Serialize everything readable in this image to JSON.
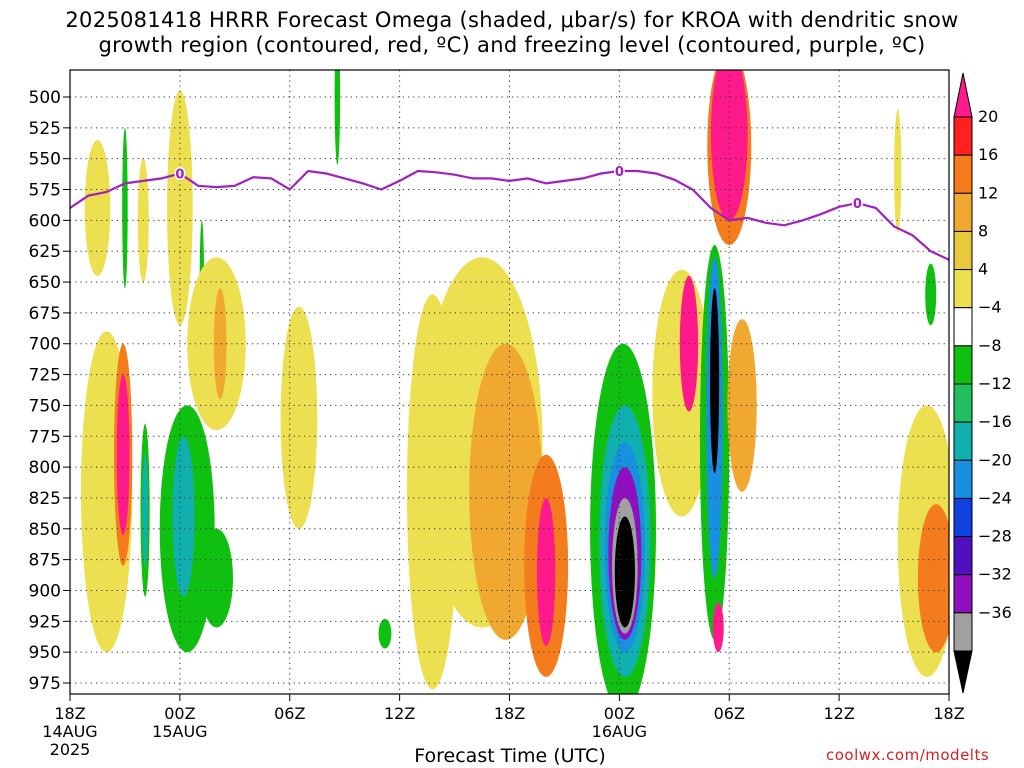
{
  "chart_data": {
    "type": "heatmap",
    "title": "2025081418 HRRR Forecast Omega (shaded, μbar/s) for KROA with dendritic snow\ngrowth region (contoured, red, ºC) and freezing level (contoured, purple, ºC)",
    "xlabel": "Forecast Time (UTC)",
    "ylabel": "",
    "credit": "coolwx.com/modelts",
    "x_range_hours": [
      0,
      48
    ],
    "y_range_mb": [
      1000,
      475
    ],
    "y_reversed": true,
    "grid": true,
    "x_ticks": [
      {
        "h": 0,
        "label": "18Z",
        "sub": "14AUG",
        "sub2": "2025"
      },
      {
        "h": 6,
        "label": "00Z",
        "sub": "15AUG",
        "sub2": ""
      },
      {
        "h": 12,
        "label": "06Z",
        "sub": "",
        "sub2": ""
      },
      {
        "h": 18,
        "label": "12Z",
        "sub": "",
        "sub2": ""
      },
      {
        "h": 24,
        "label": "18Z",
        "sub": "",
        "sub2": ""
      },
      {
        "h": 30,
        "label": "00Z",
        "sub": "16AUG",
        "sub2": ""
      },
      {
        "h": 36,
        "label": "06Z",
        "sub": "",
        "sub2": ""
      },
      {
        "h": 42,
        "label": "12Z",
        "sub": "",
        "sub2": ""
      },
      {
        "h": 48,
        "label": "18Z",
        "sub": "",
        "sub2": ""
      }
    ],
    "y_ticks": [
      500,
      525,
      550,
      575,
      600,
      625,
      650,
      675,
      700,
      725,
      750,
      775,
      800,
      825,
      850,
      875,
      900,
      925,
      950,
      975
    ],
    "colorbar": {
      "labels": [
        "20",
        "16",
        "12",
        "8",
        "4",
        "−4",
        "−8",
        "−12",
        "−16",
        "−20",
        "−24",
        "−28",
        "−32",
        "−36"
      ],
      "colors": [
        "#ff1a8c",
        "#ff2020",
        "#f47c1c",
        "#f0a830",
        "#e8c83c",
        "#ece050",
        "#ffffff",
        "#10c010",
        "#20c060",
        "#10b0b0",
        "#1890e0",
        "#1040e0",
        "#5010c0",
        "#9010c0",
        "#a0a0a0",
        "#000000"
      ]
    },
    "freezing_level": {
      "name": "0",
      "color": "#a020c0",
      "points": [
        [
          0,
          590
        ],
        [
          1,
          580
        ],
        [
          2,
          577
        ],
        [
          3,
          570
        ],
        [
          4,
          568
        ],
        [
          5,
          566
        ],
        [
          6,
          562
        ],
        [
          7,
          572
        ],
        [
          8,
          573
        ],
        [
          9,
          572
        ],
        [
          10,
          565
        ],
        [
          11,
          566
        ],
        [
          12,
          575
        ],
        [
          13,
          560
        ],
        [
          14,
          562
        ],
        [
          15,
          566
        ],
        [
          16,
          570
        ],
        [
          17,
          575
        ],
        [
          18,
          568
        ],
        [
          19,
          560
        ],
        [
          20,
          561
        ],
        [
          21,
          563
        ],
        [
          22,
          566
        ],
        [
          23,
          566
        ],
        [
          24,
          568
        ],
        [
          25,
          566
        ],
        [
          26,
          570
        ],
        [
          27,
          568
        ],
        [
          28,
          566
        ],
        [
          29,
          562
        ],
        [
          30,
          560
        ],
        [
          31,
          560
        ],
        [
          32,
          562
        ],
        [
          33,
          567
        ],
        [
          34,
          575
        ],
        [
          35,
          590
        ],
        [
          36,
          600
        ],
        [
          37,
          598
        ],
        [
          38,
          602
        ],
        [
          39,
          604
        ],
        [
          40,
          600
        ],
        [
          41,
          595
        ],
        [
          42,
          589
        ],
        [
          43,
          586
        ],
        [
          44,
          590
        ],
        [
          45,
          605
        ],
        [
          46,
          612
        ],
        [
          47,
          625
        ],
        [
          48,
          632
        ]
      ]
    },
    "ground": {
      "color": "#a0522d",
      "top_mb": 985
    },
    "cells": [
      {
        "h": 1.5,
        "p": 590,
        "rh": 0.7,
        "rp": 55,
        "v": 6
      },
      {
        "h": 3.0,
        "p": 590,
        "rh": 0.15,
        "rp": 65,
        "v": -6
      },
      {
        "h": 4.0,
        "p": 600,
        "rh": 0.3,
        "rp": 50,
        "v": 6
      },
      {
        "h": 6.0,
        "p": 590,
        "rh": 0.7,
        "rp": 95,
        "v": 6
      },
      {
        "h": 7.2,
        "p": 650,
        "rh": 0.12,
        "rp": 50,
        "v": -6
      },
      {
        "h": 8.0,
        "p": 700,
        "rh": 1.6,
        "rp": 70,
        "v": 6
      },
      {
        "h": 8.2,
        "p": 700,
        "rh": 0.35,
        "rp": 45,
        "v": 10
      },
      {
        "h": 2.0,
        "p": 820,
        "rh": 1.4,
        "rp": 130,
        "v": 6
      },
      {
        "h": 2.9,
        "p": 790,
        "rh": 0.5,
        "rp": 90,
        "v": 12
      },
      {
        "h": 2.9,
        "p": 790,
        "rh": 0.35,
        "rp": 65,
        "v": 20
      },
      {
        "h": 4.1,
        "p": 835,
        "rh": 0.25,
        "rp": 70,
        "v": -7
      },
      {
        "h": 4.1,
        "p": 835,
        "rh": 0.15,
        "rp": 45,
        "v": -12
      },
      {
        "h": 6.4,
        "p": 850,
        "rh": 1.5,
        "rp": 100,
        "v": -6
      },
      {
        "h": 6.2,
        "p": 840,
        "rh": 0.6,
        "rp": 65,
        "v": -12
      },
      {
        "h": 8.0,
        "p": 890,
        "rh": 0.9,
        "rp": 40,
        "v": -7
      },
      {
        "h": 14.6,
        "p": 500,
        "rh": 0.15,
        "rp": 55,
        "v": -6
      },
      {
        "h": 12.5,
        "p": 760,
        "rh": 1.0,
        "rp": 90,
        "v": 6
      },
      {
        "h": 17.2,
        "p": 935,
        "rh": 0.35,
        "rp": 12,
        "v": -6
      },
      {
        "h": 19.8,
        "p": 820,
        "rh": 1.4,
        "rp": 160,
        "v": 6
      },
      {
        "h": 22.5,
        "p": 780,
        "rh": 3.3,
        "rp": 150,
        "v": 6
      },
      {
        "h": 23.8,
        "p": 820,
        "rh": 2.0,
        "rp": 120,
        "v": 10
      },
      {
        "h": 26.0,
        "p": 880,
        "rh": 1.2,
        "rp": 90,
        "v": 12
      },
      {
        "h": 26.0,
        "p": 885,
        "rh": 0.5,
        "rp": 60,
        "v": 20
      },
      {
        "h": 30.2,
        "p": 850,
        "rh": 1.8,
        "rp": 150,
        "v": -6
      },
      {
        "h": 30.3,
        "p": 860,
        "rh": 1.4,
        "rp": 110,
        "v": -12
      },
      {
        "h": 30.3,
        "p": 865,
        "rh": 1.1,
        "rp": 85,
        "v": -16
      },
      {
        "h": 30.3,
        "p": 870,
        "rh": 0.9,
        "rp": 70,
        "v": -28
      },
      {
        "h": 30.3,
        "p": 880,
        "rh": 0.7,
        "rp": 55,
        "v": -32
      },
      {
        "h": 30.3,
        "p": 885,
        "rh": 0.55,
        "rp": 45,
        "v": -36
      },
      {
        "h": 33.4,
        "p": 740,
        "rh": 1.6,
        "rp": 100,
        "v": 6
      },
      {
        "h": 33.8,
        "p": 700,
        "rh": 0.5,
        "rp": 55,
        "v": 20
      },
      {
        "h": 35.2,
        "p": 780,
        "rh": 0.8,
        "rp": 160,
        "v": -6
      },
      {
        "h": 35.2,
        "p": 760,
        "rh": 0.45,
        "rp": 130,
        "v": -16
      },
      {
        "h": 35.2,
        "p": 730,
        "rh": 0.25,
        "rp": 75,
        "v": -36
      },
      {
        "h": 36.0,
        "p": 540,
        "rh": 1.2,
        "rp": 80,
        "v": 12
      },
      {
        "h": 36.0,
        "p": 530,
        "rh": 1.0,
        "rp": 70,
        "v": 20
      },
      {
        "h": 36.7,
        "p": 750,
        "rh": 0.8,
        "rp": 70,
        "v": 8
      },
      {
        "h": 35.4,
        "p": 930,
        "rh": 0.3,
        "rp": 20,
        "v": 20
      },
      {
        "h": 45.2,
        "p": 560,
        "rh": 0.2,
        "rp": 50,
        "v": 6
      },
      {
        "h": 47.0,
        "p": 660,
        "rh": 0.3,
        "rp": 25,
        "v": -6
      },
      {
        "h": 46.8,
        "p": 860,
        "rh": 1.6,
        "rp": 110,
        "v": 6
      },
      {
        "h": 47.3,
        "p": 890,
        "rh": 1.0,
        "rp": 60,
        "v": 12
      }
    ]
  }
}
